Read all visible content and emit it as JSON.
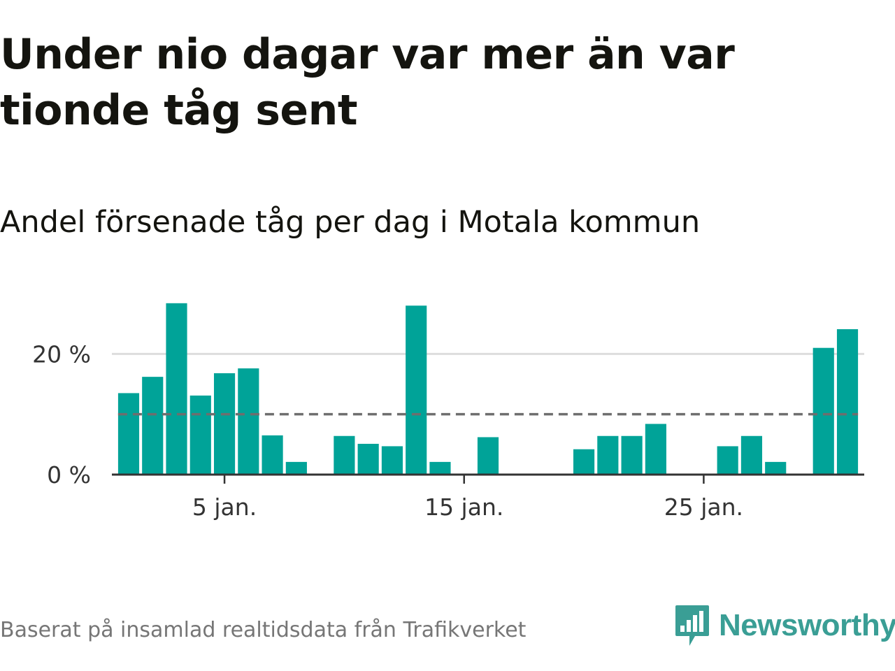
{
  "header": {
    "title": "Under nio dagar var mer än var tionde tåg sent",
    "subtitle": "Andel försenade tåg per dag i Motala kommun"
  },
  "footer": {
    "source": "Baserat på insamlad realtidsdata från Trafikverket",
    "brand": "Newsworthy",
    "brand_icon": "newsworthy-logo-icon"
  },
  "colors": {
    "bar": "#00a398",
    "reference_line": "#6e6e6e",
    "grid": "#dddddd",
    "axis": "#333333",
    "brand": "#3a9e95"
  },
  "chart_data": {
    "type": "bar",
    "title": "Under nio dagar var mer än var tionde tåg sent",
    "subtitle": "Andel försenade tåg per dag i Motala kommun",
    "x_unit": "day of January",
    "days": [
      1,
      2,
      3,
      4,
      5,
      6,
      7,
      8,
      9,
      10,
      11,
      12,
      13,
      14,
      15,
      16,
      17,
      18,
      19,
      20,
      21,
      22,
      23,
      24,
      25,
      26,
      27,
      28,
      29,
      30,
      31
    ],
    "values": [
      13.5,
      16.2,
      28.4,
      13.1,
      16.8,
      17.6,
      6.5,
      2.1,
      null,
      6.4,
      5.1,
      4.7,
      28.0,
      2.1,
      null,
      6.2,
      null,
      null,
      null,
      4.2,
      6.4,
      6.4,
      8.4,
      null,
      null,
      4.7,
      6.4,
      2.1,
      null,
      21.0,
      24.1
    ],
    "x_range": [
      0.3,
      31.7
    ],
    "ylim": [
      0,
      30
    ],
    "y_ticks": [
      0,
      20
    ],
    "y_tick_labels": [
      "0 %",
      "20 %"
    ],
    "x_ticks": [
      5,
      15,
      25
    ],
    "x_tick_labels": [
      "5 jan.",
      "15 jan.",
      "25 jan."
    ],
    "reference_line": 10,
    "grid": true,
    "legend": "none"
  }
}
